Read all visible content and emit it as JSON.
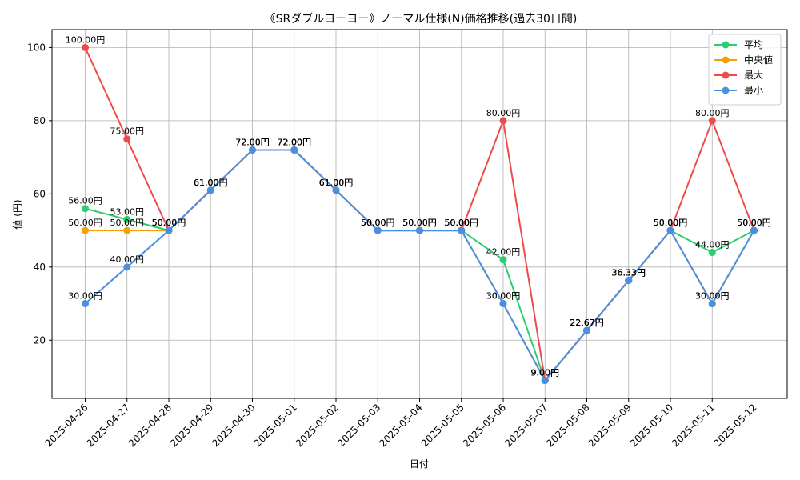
{
  "chart_data": {
    "type": "line",
    "title": "《SRダブルヨーヨー》ノーマル仕様(N)価格推移(過去30日間)",
    "xlabel": "日付",
    "ylabel": "値 (円)",
    "ylim": [
      4.1,
      104.9
    ],
    "yticks": [
      20,
      40,
      60,
      80,
      100
    ],
    "grid": true,
    "legend_position": "top-right",
    "categories": [
      "2025-04-26",
      "2025-04-27",
      "2025-04-28",
      "2025-04-29",
      "2025-04-30",
      "2025-05-01",
      "2025-05-02",
      "2025-05-03",
      "2025-05-04",
      "2025-05-05",
      "2025-05-06",
      "2025-05-07",
      "2025-05-08",
      "2025-05-09",
      "2025-05-10",
      "2025-05-11",
      "2025-05-12"
    ],
    "series": [
      {
        "name": "平均",
        "color": "#2ecc71",
        "values": [
          56,
          53,
          50,
          61,
          72,
          72,
          61,
          50,
          50,
          50,
          42,
          9,
          22.67,
          36.33,
          50,
          44,
          50
        ]
      },
      {
        "name": "中央値",
        "color": "#f5a20a",
        "values": [
          50,
          50,
          50,
          61,
          72,
          72,
          61,
          50,
          50,
          50,
          30,
          9,
          22.67,
          36.33,
          50,
          30,
          50
        ]
      },
      {
        "name": "最大",
        "color": "#ef4a4a",
        "values": [
          100,
          75,
          50,
          61,
          72,
          72,
          61,
          50,
          50,
          50,
          80,
          9,
          22.67,
          36.33,
          50,
          80,
          50
        ]
      },
      {
        "name": "最小",
        "color": "#4a90e2",
        "values": [
          30,
          40,
          50,
          61,
          72,
          72,
          61,
          50,
          50,
          50,
          30,
          9,
          22.67,
          36.33,
          50,
          30,
          50
        ]
      }
    ],
    "value_suffix": "円"
  }
}
